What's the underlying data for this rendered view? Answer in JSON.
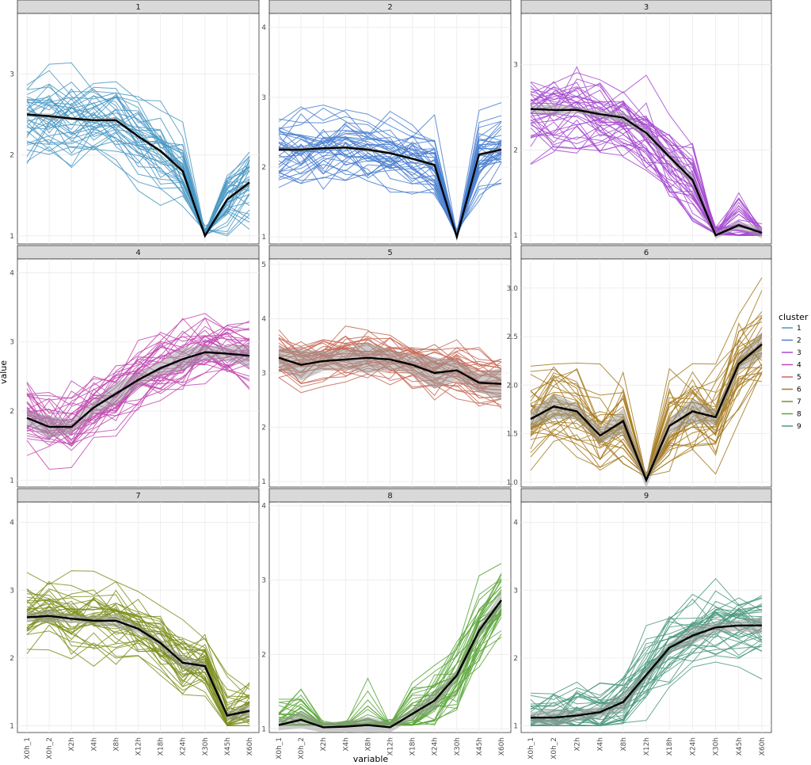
{
  "chart_data": {
    "type": "line",
    "xlabel": "variable",
    "ylabel": "value",
    "x": [
      "X0h_1",
      "X0h_2",
      "X2h",
      "X4h",
      "X8h",
      "X12h",
      "X18h",
      "X24h",
      "X30h",
      "X45h",
      "X60h"
    ],
    "legend": {
      "title": "cluster",
      "position": "right"
    },
    "grid": true,
    "mean_line_color": "#000000",
    "ribbon_color": "#999999",
    "panels": [
      {
        "label": "1",
        "color": "#4a98c3",
        "ylim": [
          0.9,
          3.75
        ],
        "yticks": [
          "1",
          "2",
          "3"
        ],
        "mean": [
          2.5,
          2.48,
          2.45,
          2.43,
          2.43,
          2.23,
          2.05,
          1.8,
          1.0,
          1.45,
          1.66
        ],
        "ribbon": 0.02
      },
      {
        "label": "2",
        "color": "#4a7fd0",
        "ylim": [
          0.9,
          4.2
        ],
        "yticks": [
          "1",
          "2",
          "3",
          "4"
        ],
        "mean": [
          2.25,
          2.25,
          2.27,
          2.28,
          2.25,
          2.2,
          2.12,
          2.03,
          1.0,
          2.18,
          2.25
        ],
        "ribbon": 0.02
      },
      {
        "label": "3",
        "color": "#a64ad0",
        "ylim": [
          0.9,
          3.6
        ],
        "yticks": [
          "1",
          "2",
          "3"
        ],
        "mean": [
          2.48,
          2.47,
          2.47,
          2.42,
          2.38,
          2.2,
          1.92,
          1.65,
          1.0,
          1.12,
          1.03
        ],
        "ribbon": 0.04
      },
      {
        "label": "4",
        "color": "#c24ab0",
        "ylim": [
          0.9,
          4.2
        ],
        "yticks": [
          "1",
          "2",
          "3",
          "4"
        ],
        "mean": [
          1.9,
          1.77,
          1.77,
          2.05,
          2.25,
          2.45,
          2.62,
          2.75,
          2.85,
          2.83,
          2.8
        ],
        "ribbon": 0.1
      },
      {
        "label": "5",
        "color": "#c76a57",
        "ylim": [
          0.9,
          5.1
        ],
        "yticks": [
          "1",
          "2",
          "3",
          "4",
          "5"
        ],
        "mean": [
          3.28,
          3.15,
          3.22,
          3.25,
          3.28,
          3.25,
          3.15,
          3.0,
          3.05,
          2.82,
          2.8
        ],
        "ribbon": 0.18
      },
      {
        "label": "6",
        "color": "#a67a1e",
        "ylim": [
          0.95,
          3.3
        ],
        "yticks": [
          "1.0",
          "1.5",
          "2.0",
          "2.5",
          "3.0"
        ],
        "mean": [
          1.65,
          1.78,
          1.73,
          1.48,
          1.63,
          1.02,
          1.58,
          1.73,
          1.67,
          2.22,
          2.42
        ],
        "ribbon": 0.08
      },
      {
        "label": "7",
        "color": "#7e8f1e",
        "ylim": [
          0.9,
          4.3
        ],
        "yticks": [
          "1",
          "2",
          "3",
          "4"
        ],
        "mean": [
          2.6,
          2.62,
          2.58,
          2.55,
          2.55,
          2.43,
          2.22,
          1.93,
          1.88,
          1.15,
          1.22
        ],
        "ribbon": 0.06
      },
      {
        "label": "8",
        "color": "#5aa63a",
        "ylim": [
          0.95,
          4.05
        ],
        "yticks": [
          "1",
          "2",
          "3",
          "4"
        ],
        "mean": [
          1.05,
          1.12,
          1.02,
          1.03,
          1.05,
          1.02,
          1.2,
          1.38,
          1.72,
          2.32,
          2.73
        ],
        "ribbon": 0.07
      },
      {
        "label": "9",
        "color": "#4c9a80",
        "ylim": [
          0.9,
          4.3
        ],
        "yticks": [
          "1",
          "2",
          "3",
          "4"
        ],
        "mean": [
          1.12,
          1.12,
          1.15,
          1.2,
          1.35,
          1.75,
          2.15,
          2.33,
          2.45,
          2.48,
          2.48
        ],
        "ribbon": 0.08
      }
    ]
  }
}
